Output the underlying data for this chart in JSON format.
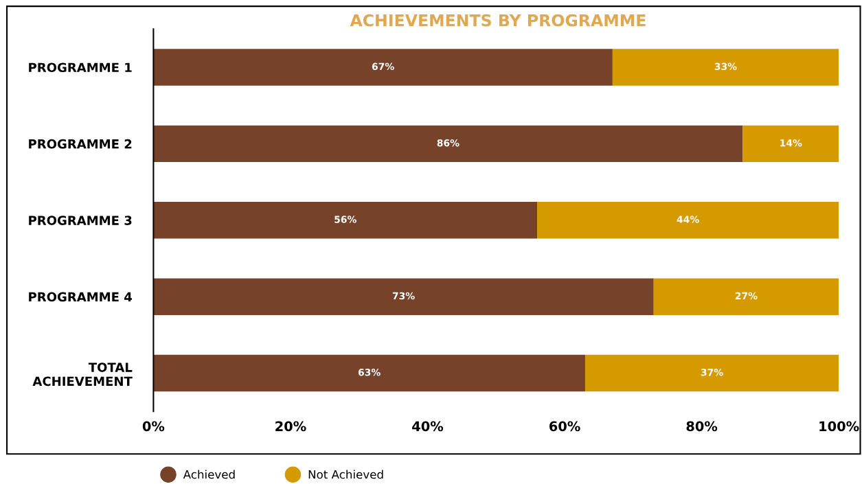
{
  "chart_data": {
    "type": "bar",
    "orientation": "horizontal",
    "stacked": true,
    "title": "ACHIEVEMENTS BY PROGRAMME",
    "categories": [
      "PROGRAMME 1",
      "PROGRAMME 2",
      "PROGRAMME 3",
      "PROGRAMME 4",
      "TOTAL\nACHIEVEMENT"
    ],
    "series": [
      {
        "name": "Achieved",
        "color": "#76432a",
        "values": [
          67,
          86,
          56,
          73,
          63
        ],
        "value_labels": [
          "67%",
          "86%",
          "56%",
          "73%",
          "63%"
        ]
      },
      {
        "name": "Not Achieved",
        "color": "#d49a00",
        "values": [
          33,
          14,
          44,
          27,
          37
        ],
        "value_labels": [
          "33%",
          "14%",
          "44%",
          "27%",
          "37%"
        ]
      }
    ],
    "xlim": [
      0,
      100
    ],
    "xticks": [
      {
        "value": 0,
        "label": "0%"
      },
      {
        "value": 20,
        "label": "20%"
      },
      {
        "value": 40,
        "label": "40%"
      },
      {
        "value": 60,
        "label": "60%"
      },
      {
        "value": 80,
        "label": "80%"
      },
      {
        "value": 100,
        "label": "100%"
      }
    ],
    "grid": false,
    "legend": "bottom"
  }
}
